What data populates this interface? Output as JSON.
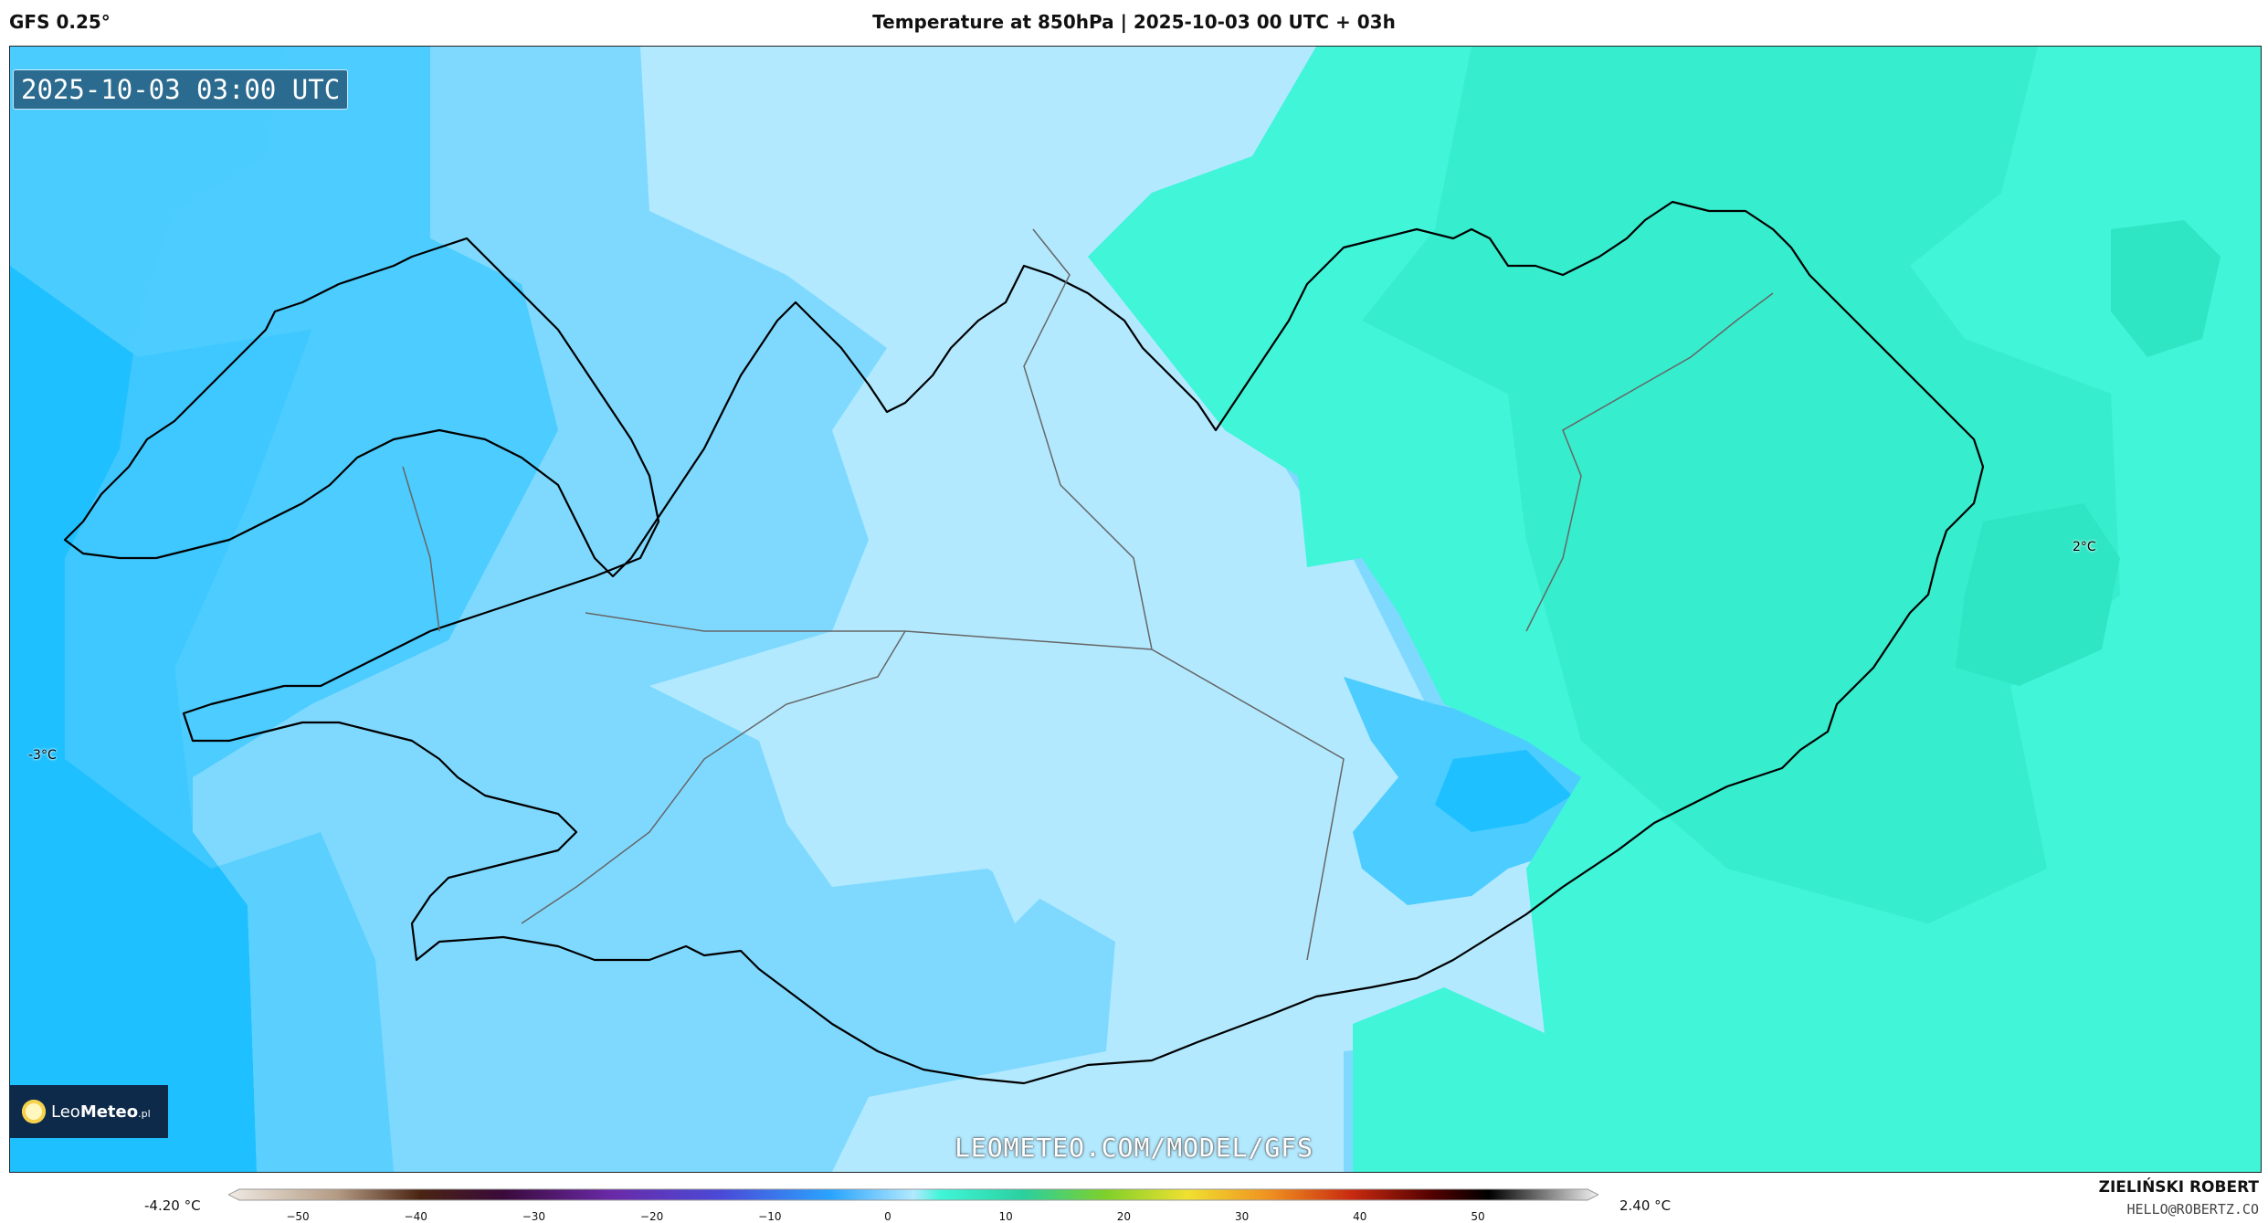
{
  "header": {
    "model": "GFS 0.25°",
    "title": "Temperature at 850hPa | 2025-10-03 00 UTC + 03h"
  },
  "map": {
    "timestamp": "2025-10-03 03:00 UTC",
    "watermark": "LEOMETEO.COM/MODEL/GFS",
    "labels": [
      {
        "id": "west",
        "text": "-3°C"
      },
      {
        "id": "east",
        "text": "2°C"
      }
    ],
    "colors": {
      "deep_blue": "#1ec0ff",
      "mid_blue": "#4cccff",
      "light_blue": "#7fd9ff",
      "pale_blue": "#b2e9ff",
      "teal": "#40f5d8",
      "teal_dark": "#2ee6c4",
      "coast": "#000000",
      "border": "#666666"
    }
  },
  "logo": {
    "name_light": "Leo",
    "name_bold": "Meteo",
    "suffix": ".pl"
  },
  "colorbar": {
    "min_label": "-4.20 °C",
    "max_label": "2.40 °C",
    "ticks": [
      "−50",
      "−40",
      "−30",
      "−20",
      "−10",
      "0",
      "10",
      "20",
      "30",
      "40",
      "50"
    ]
  },
  "credits": {
    "author": "ZIELIŃSKI ROBERT",
    "email": "HELLO@ROBERTZ.CO"
  }
}
